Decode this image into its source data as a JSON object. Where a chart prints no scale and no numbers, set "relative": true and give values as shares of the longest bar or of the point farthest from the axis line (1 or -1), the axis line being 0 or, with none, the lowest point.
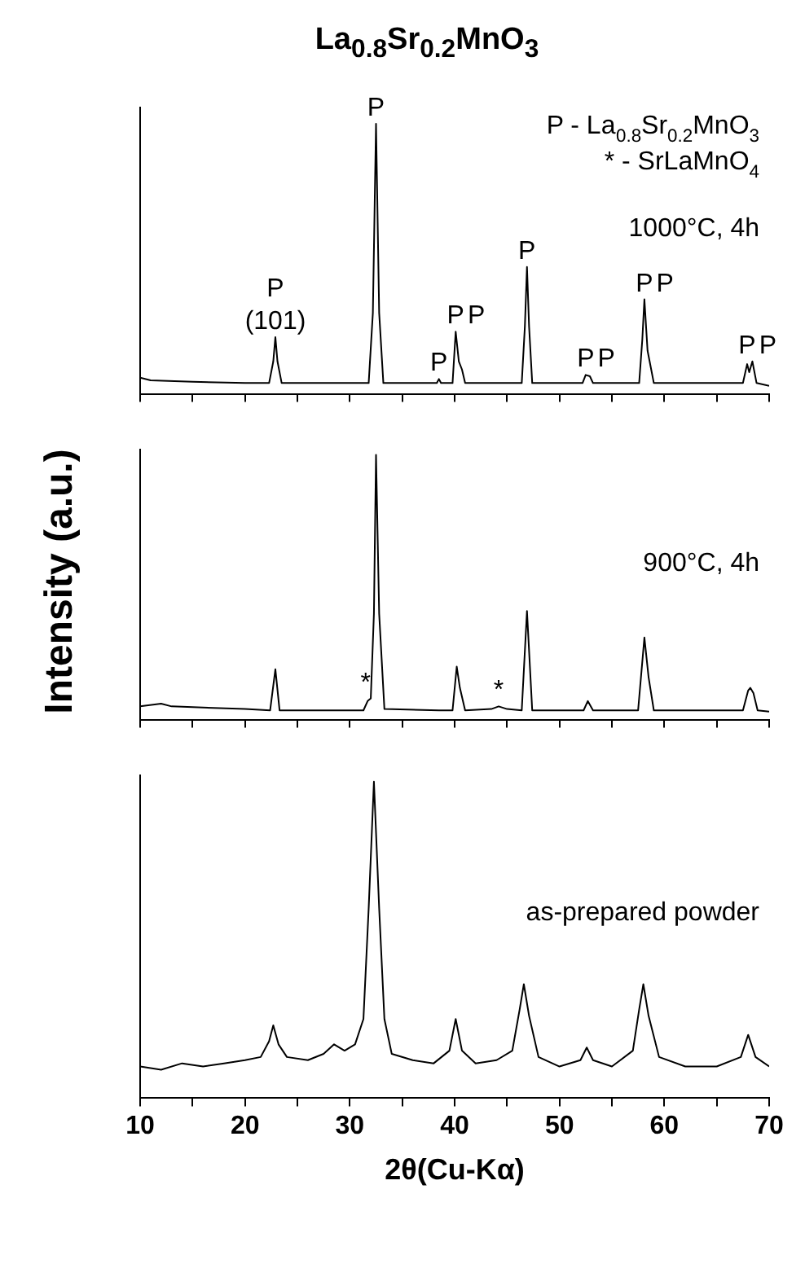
{
  "chart_data": [
    {
      "type": "line",
      "title": "La$_{0.8}$Sr$_{0.2}$MnO$_{3}$",
      "relative": true,
      "color": "#000000",
      "marker": "none",
      "grid": false,
      "legend": false,
      "tick_labels": false,
      "xlim": [
        10,
        70
      ],
      "xticks": [
        10,
        {
          "value": 15,
          "label": null
        },
        20,
        {
          "value": 25,
          "label": null
        },
        30,
        {
          "value": 35,
          "label": null
        },
        40,
        {
          "value": 45,
          "label": null
        },
        50,
        {
          "value": 55,
          "label": null
        },
        60,
        {
          "value": 65,
          "label": null
        },
        70
      ],
      "x": [
        10,
        11,
        15,
        20,
        22.3,
        22.7,
        22.9,
        23.1,
        23.5,
        30,
        31.8,
        32.2,
        32.5,
        32.8,
        33.2,
        38.3,
        38.5,
        38.7,
        39.8,
        40.1,
        40.4,
        40.7,
        41.0,
        46.4,
        46.7,
        46.9,
        47.1,
        47.4,
        52.2,
        52.5,
        52.9,
        53.2,
        57.6,
        57.9,
        58.1,
        58.4,
        58.6,
        59.0,
        67.5,
        67.9,
        68.1,
        68.4,
        68.8,
        70
      ],
      "values": [
        0.06,
        0.05,
        0.045,
        0.04,
        0.04,
        0.12,
        0.21,
        0.12,
        0.04,
        0.04,
        0.04,
        0.3,
        1.0,
        0.3,
        0.04,
        0.04,
        0.055,
        0.04,
        0.04,
        0.23,
        0.12,
        0.09,
        0.04,
        0.04,
        0.25,
        0.47,
        0.25,
        0.04,
        0.04,
        0.07,
        0.065,
        0.04,
        0.04,
        0.2,
        0.35,
        0.16,
        0.12,
        0.04,
        0.04,
        0.11,
        0.08,
        0.12,
        0.04,
        0.03
      ],
      "annotations": [
        "P - La$_{0.8}$Sr$_{0.2}$MnO$_{3}$",
        "* - SrLaMnO$_{4}$",
        "1000°C, 4h",
        {
          "text": "(101)",
          "x": 22.9,
          "y": 0.21
        },
        {
          "text": "P",
          "x": 22.9,
          "y": 0.21
        },
        {
          "text": "P",
          "x": 32.5,
          "y": 1.0
        },
        {
          "text": "P",
          "x": 38.5,
          "y": 0.055
        },
        {
          "text": "P",
          "x": 40.1,
          "y": 0.23
        },
        {
          "text": "P",
          "x": 40.7,
          "y": 0.09
        },
        {
          "text": "P",
          "x": 46.9,
          "y": 0.47
        },
        {
          "text": "P",
          "x": 52.5,
          "y": 0.07
        },
        {
          "text": "P",
          "x": 52.9,
          "y": 0.065
        },
        {
          "text": "P",
          "x": 58.1,
          "y": 0.35
        },
        {
          "text": "P",
          "x": 58.6,
          "y": 0.12
        },
        {
          "text": "P",
          "x": 67.9,
          "y": 0.11
        },
        {
          "text": "P",
          "x": 68.4,
          "y": 0.12
        }
      ]
    },
    {
      "type": "line",
      "ylabel": "Intensity (a.u.)",
      "relative": true,
      "color": "#000000",
      "marker": "none",
      "grid": false,
      "legend": false,
      "tick_labels": false,
      "xlim": [
        10,
        70
      ],
      "xticks": [
        10,
        {
          "value": 15,
          "label": null
        },
        20,
        {
          "value": 25,
          "label": null
        },
        30,
        {
          "value": 35,
          "label": null
        },
        40,
        {
          "value": 45,
          "label": null
        },
        50,
        {
          "value": 55,
          "label": null
        },
        60,
        {
          "value": 65,
          "label": null
        },
        70
      ],
      "x": [
        10,
        12,
        13,
        20,
        22.4,
        22.9,
        23.3,
        31.3,
        31.7,
        32.0,
        32.3,
        32.5,
        32.8,
        33.3,
        38.5,
        39.8,
        40.2,
        40.5,
        41.0,
        43.5,
        44.2,
        45,
        46.4,
        46.9,
        47.4,
        52.3,
        52.7,
        53.2,
        57.5,
        58.1,
        58.5,
        59.0,
        67.5,
        68.0,
        68.2,
        68.5,
        68.9,
        70
      ],
      "values": [
        0.05,
        0.06,
        0.05,
        0.04,
        0.035,
        0.19,
        0.035,
        0.035,
        0.07,
        0.08,
        0.4,
        1.0,
        0.4,
        0.04,
        0.035,
        0.035,
        0.2,
        0.12,
        0.035,
        0.04,
        0.05,
        0.04,
        0.035,
        0.41,
        0.035,
        0.035,
        0.07,
        0.035,
        0.035,
        0.31,
        0.16,
        0.035,
        0.035,
        0.11,
        0.12,
        0.1,
        0.035,
        0.03
      ],
      "annotations": [
        "900°C, 4h",
        {
          "text": "*",
          "x": 31.5,
          "y": 0.05
        },
        {
          "text": "*",
          "x": 44.2,
          "y": 0.05
        }
      ]
    },
    {
      "type": "line",
      "xlabel": "2θ(Cu-Kα)",
      "relative": true,
      "color": "#000000",
      "marker": "none",
      "grid": false,
      "legend": false,
      "tick_labels": "x",
      "xlim": [
        10,
        70
      ],
      "xticks": [
        10,
        {
          "value": 15,
          "label": null
        },
        20,
        {
          "value": 25,
          "label": null
        },
        30,
        {
          "value": 35,
          "label": null
        },
        40,
        {
          "value": 45,
          "label": null
        },
        50,
        {
          "value": 55,
          "label": null
        },
        60,
        {
          "value": 65,
          "label": null
        },
        70
      ],
      "x": [
        10,
        12,
        14,
        16,
        18,
        20,
        21.5,
        22.3,
        22.7,
        23.2,
        24,
        26,
        27.5,
        28.5,
        29.5,
        30.5,
        31.3,
        31.8,
        32.3,
        32.8,
        33.3,
        34,
        36,
        38,
        39.5,
        40.1,
        40.7,
        42,
        44,
        45.5,
        46.2,
        46.6,
        47.1,
        48,
        50,
        52.0,
        52.6,
        53.2,
        55,
        57,
        57.6,
        58.0,
        58.5,
        59.5,
        62,
        65,
        67.3,
        68.0,
        68.7,
        70
      ],
      "values": [
        0.1,
        0.09,
        0.11,
        0.1,
        0.11,
        0.12,
        0.13,
        0.18,
        0.23,
        0.17,
        0.13,
        0.12,
        0.14,
        0.17,
        0.15,
        0.17,
        0.25,
        0.6,
        1.0,
        0.6,
        0.25,
        0.14,
        0.12,
        0.11,
        0.15,
        0.25,
        0.15,
        0.11,
        0.12,
        0.15,
        0.28,
        0.36,
        0.26,
        0.13,
        0.1,
        0.12,
        0.16,
        0.12,
        0.1,
        0.15,
        0.28,
        0.36,
        0.26,
        0.13,
        0.1,
        0.1,
        0.13,
        0.2,
        0.13,
        0.1
      ],
      "annotations": [
        "as-prepared powder"
      ]
    }
  ]
}
